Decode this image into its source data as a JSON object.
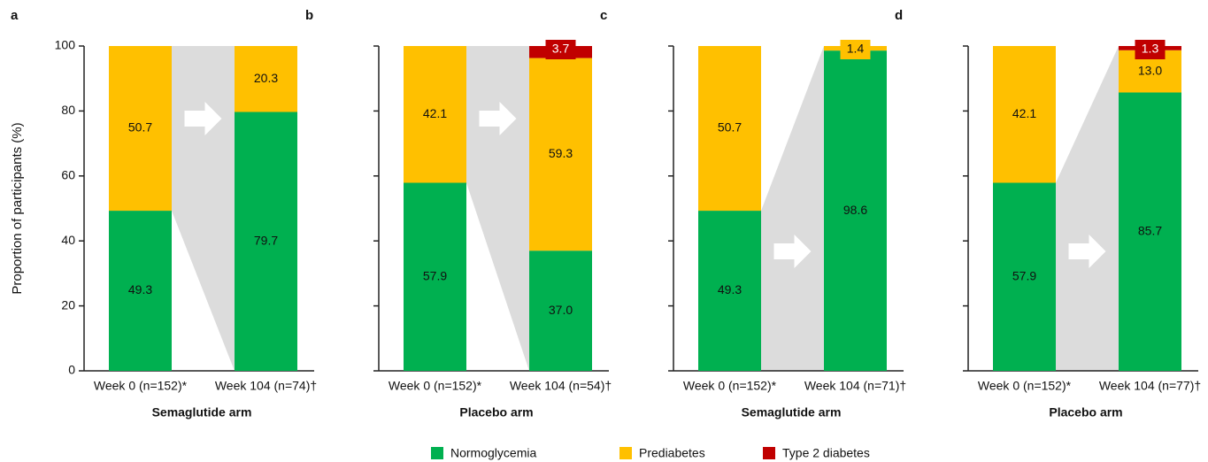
{
  "legend": [
    {
      "name": "Normoglycemia",
      "color": "#00b050"
    },
    {
      "name": "Prediabetes",
      "color": "#ffc000"
    },
    {
      "name": "Type 2 diabetes",
      "color": "#c00000"
    }
  ],
  "chart_data": [
    {
      "type": "bar",
      "stacked": true,
      "panel": "a",
      "xlabel": "Semaglutide arm",
      "ylabel": "Proportion of participants (%)",
      "categories": [
        "Week 0 (n=152)*",
        "Week 104 (n=74)†"
      ],
      "ylim": [
        0,
        100
      ],
      "yticks": [
        0,
        20,
        40,
        60,
        80,
        100
      ],
      "series": [
        {
          "values": [
            49.3,
            79.7
          ],
          "value_labels": [
            "49.3",
            "79.7"
          ]
        },
        {
          "values": [
            50.7,
            20.3
          ],
          "value_labels": [
            "50.7",
            "20.3"
          ]
        },
        {
          "values": [
            null,
            null
          ],
          "value_labels": [
            null,
            null
          ]
        }
      ]
    },
    {
      "type": "bar",
      "stacked": true,
      "panel": "b",
      "xlabel": "Placebo arm",
      "categories": [
        "Week 0 (n=152)*",
        "Week 104 (n=54)†"
      ],
      "ylim": [
        0,
        100
      ],
      "yticks": [
        0,
        20,
        40,
        60,
        80,
        100
      ],
      "series": [
        {
          "values": [
            57.9,
            37.0
          ],
          "value_labels": [
            "57.9",
            "37.0"
          ]
        },
        {
          "values": [
            42.1,
            59.3
          ],
          "value_labels": [
            "42.1",
            "59.3"
          ]
        },
        {
          "values": [
            null,
            3.7
          ],
          "value_labels": [
            null,
            "3.7"
          ]
        }
      ]
    },
    {
      "type": "bar",
      "stacked": true,
      "panel": "c",
      "xlabel": "Semaglutide arm",
      "categories": [
        "Week 0 (n=152)*",
        "Week 104 (n=71)†"
      ],
      "ylim": [
        0,
        100
      ],
      "yticks": [
        0,
        20,
        40,
        60,
        80,
        100
      ],
      "series": [
        {
          "values": [
            49.3,
            98.6
          ],
          "value_labels": [
            "49.3",
            "98.6"
          ]
        },
        {
          "values": [
            50.7,
            1.4
          ],
          "value_labels": [
            "50.7",
            "1.4"
          ]
        },
        {
          "values": [
            null,
            null
          ],
          "value_labels": [
            null,
            null
          ]
        }
      ]
    },
    {
      "type": "bar",
      "stacked": true,
      "panel": "d",
      "xlabel": "Placebo arm",
      "categories": [
        "Week 0 (n=152)*",
        "Week 104 (n=77)†"
      ],
      "ylim": [
        0,
        100
      ],
      "yticks": [
        0,
        20,
        40,
        60,
        80,
        100
      ],
      "series": [
        {
          "values": [
            57.9,
            85.7
          ],
          "value_labels": [
            "57.9",
            "85.7"
          ]
        },
        {
          "values": [
            42.1,
            13.0
          ],
          "value_labels": [
            "42.1",
            "13.0"
          ]
        },
        {
          "values": [
            null,
            1.3
          ],
          "value_labels": [
            null,
            "1.3"
          ]
        }
      ]
    }
  ]
}
